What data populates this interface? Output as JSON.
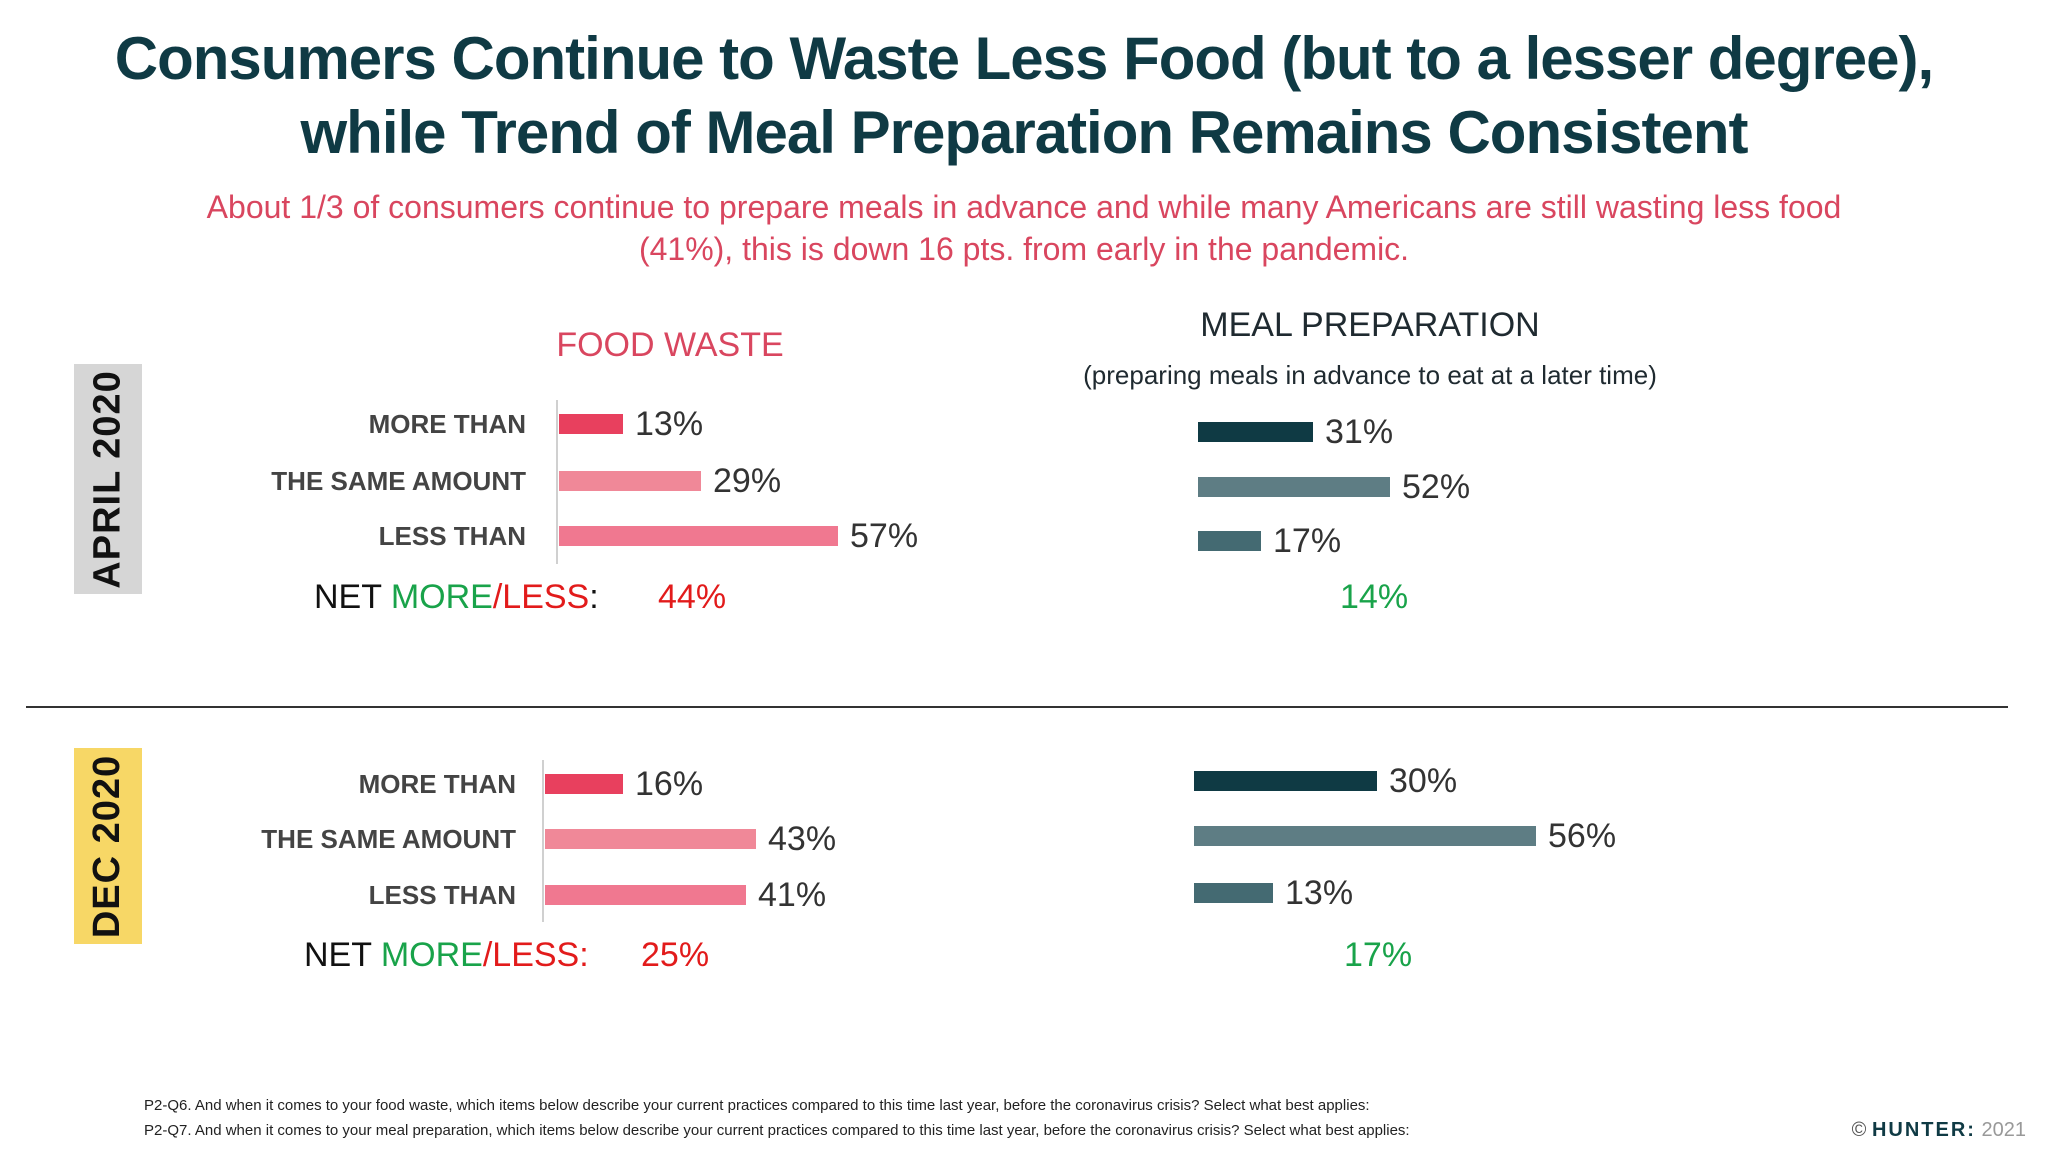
{
  "title_line1": "Consumers Continue to Waste Less Food (but to a lesser degree),",
  "title_line2": "while Trend of Meal Preparation Remains Consistent",
  "subtitle_line1": "About 1/3 of consumers continue to prepare meals in advance and while many Americans are still wasting less food",
  "subtitle_line2": "(41%), this is down 16 pts. from early in the pandemic.",
  "food_waste_heading": "FOOD WASTE",
  "meal_prep_heading": "MEAL PREPARATION",
  "meal_prep_subheading": "(preparing meals  in advance to eat at a later time)",
  "net_label": {
    "prefix": "NET ",
    "more": "MORE",
    "slash": "/",
    "less": "LESS",
    "colon": ":"
  },
  "colors": {
    "fw_more": "#e8405e",
    "fw_same": "#f08898",
    "fw_less": "#f07890",
    "mp_more": "#0f3a44",
    "mp_same": "#5e7d84",
    "mp_less": "#446a72"
  },
  "chart_data": [
    {
      "type": "bar",
      "orientation": "horizontal",
      "period": "APRIL 2020",
      "title": "FOOD WASTE",
      "categories": [
        "MORE THAN",
        "THE SAME AMOUNT",
        "LESS THAN"
      ],
      "values": [
        13,
        29,
        57
      ],
      "labels": [
        "13%",
        "29%",
        "57%"
      ],
      "net": "44%"
    },
    {
      "type": "bar",
      "orientation": "horizontal",
      "period": "APRIL 2020",
      "title": "MEAL PREPARATION",
      "categories": [
        "MORE THAN",
        "THE SAME AMOUNT",
        "LESS THAN"
      ],
      "values": [
        31,
        52,
        17
      ],
      "labels": [
        "31%",
        "52%",
        "17%"
      ],
      "net": "14%"
    },
    {
      "type": "bar",
      "orientation": "horizontal",
      "period": "DEC 2020",
      "title": "FOOD WASTE",
      "categories": [
        "MORE THAN",
        "THE SAME AMOUNT",
        "LESS THAN"
      ],
      "values": [
        16,
        43,
        41
      ],
      "labels": [
        "16%",
        "43%",
        "41%"
      ],
      "net": "25%"
    },
    {
      "type": "bar",
      "orientation": "horizontal",
      "period": "DEC 2020",
      "title": "MEAL PREPARATION",
      "categories": [
        "MORE THAN",
        "THE SAME AMOUNT",
        "LESS THAN"
      ],
      "values": [
        30,
        56,
        13
      ],
      "labels": [
        "30%",
        "56%",
        "13%"
      ],
      "net": "17%"
    }
  ],
  "footnote_q6": "P2-Q6.  And when it comes to your food waste, which items below describe your current practices compared to this time last year, before the coronavirus crisis? Select what best applies:",
  "footnote_q7": "P2-Q7. And when it comes to your meal preparation, which items below describe your current practices compared to this time last year, before the coronavirus crisis? Select what best applies:",
  "copyright": {
    "symbol": "©",
    "brand": "HUNTER:",
    "year": "2021"
  }
}
